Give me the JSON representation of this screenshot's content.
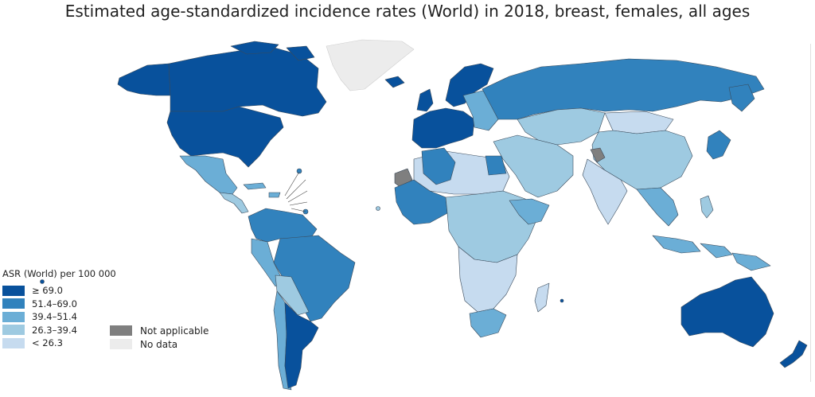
{
  "title": "Estimated age-standardized incidence rates (World) in 2018, breast, females, all ages",
  "colors": {
    "c1": "#08519c",
    "c2": "#3182bd",
    "c3": "#6baed6",
    "c4": "#9ecae1",
    "c5": "#c6dbef",
    "na": "#7f7f7f",
    "nodata": "#ececec",
    "border": "#3a4a5a"
  },
  "legend": {
    "title": "ASR (World) per 100 000",
    "classes": [
      {
        "label": "≥ 69.0",
        "color": "#08519c"
      },
      {
        "label": "51.4–69.0",
        "color": "#3182bd"
      },
      {
        "label": "39.4–51.4",
        "color": "#6baed6"
      },
      {
        "label": "26.3–39.4",
        "color": "#9ecae1"
      },
      {
        "label": "< 26.3",
        "color": "#c6dbef"
      }
    ],
    "special": [
      {
        "label": "Not applicable",
        "color": "#7f7f7f"
      },
      {
        "label": "No data",
        "color": "#ececec"
      }
    ]
  }
}
